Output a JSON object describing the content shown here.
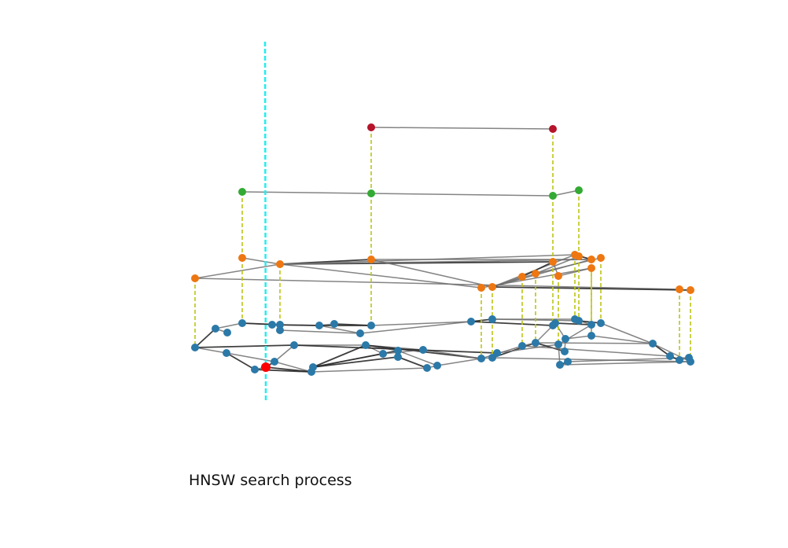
{
  "caption": "HNSW search process",
  "colors": {
    "layer2": "#b5142b",
    "layer1": "#33aa33",
    "layer0": "#ee7711",
    "base": "#2b79a8",
    "query": "#ff0000",
    "edge": "#6e6e6e",
    "edge_strong": "#2a2a2a",
    "projection": "#bcc514",
    "query_line": "#22eeee"
  }
}
